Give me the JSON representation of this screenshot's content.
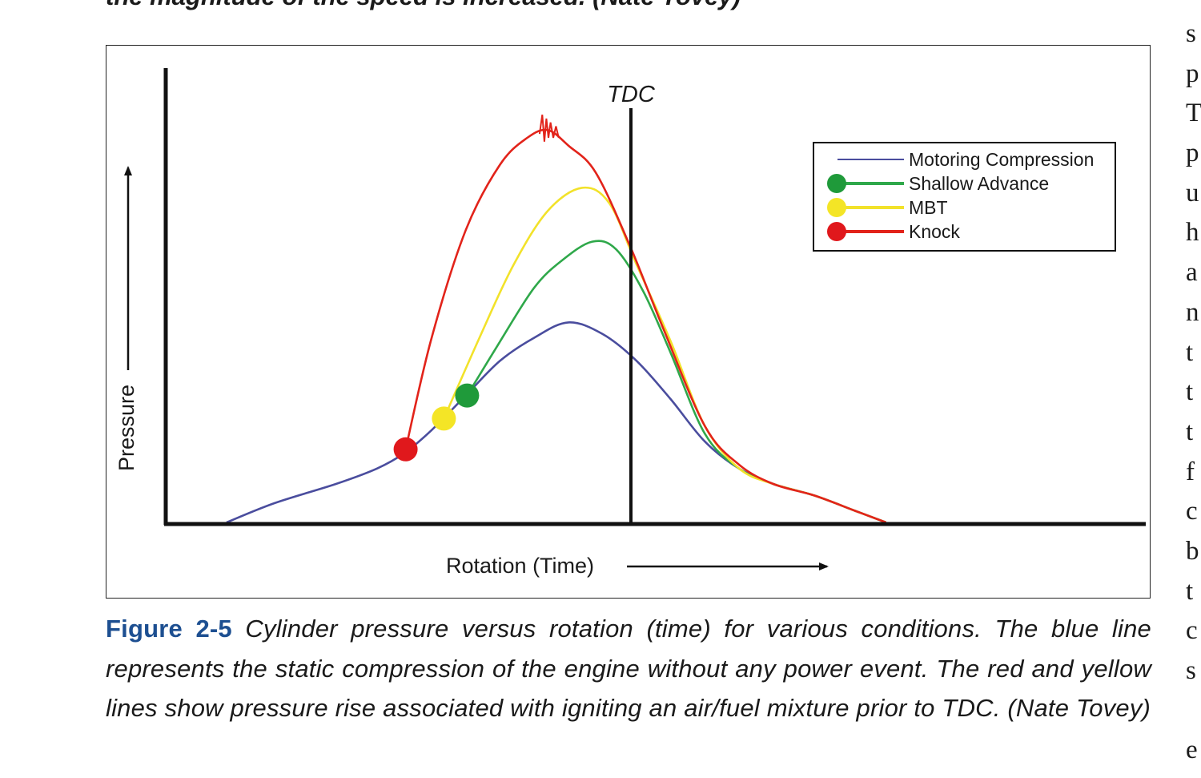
{
  "top_text_fragment": "the magnitude of the speed is increased. (Nate Tovey)",
  "side_column_fragments": [
    "s",
    "p",
    "T",
    "p",
    "u",
    "h",
    "a",
    "n",
    "t",
    "t",
    "t",
    "f",
    "c",
    "b",
    "t",
    "c",
    "s",
    "",
    "e"
  ],
  "caption": {
    "label": "Figure 2-5",
    "text": " Cylinder pressure versus rotation (time) for various conditions. The blue line represents the static compression of the engine without any power event. The red and yellow lines show pressure rise associated with igniting an air/fuel mixture prior to TDC. (Nate Tovey)"
  },
  "colors": {
    "motoring": "#4a4d9e",
    "shallow": "#2fa84a",
    "mbt": "#f2e22a",
    "knock": "#e2231a",
    "shallow_dot": "#1f9a3a",
    "mbt_dot": "#f4e526",
    "knock_dot": "#e0181c"
  },
  "chart_data": {
    "type": "line",
    "title": "",
    "xlabel": "Rotation (Time)",
    "ylabel": "Pressure",
    "tdc_label": "TDC",
    "tdc_x": 0,
    "xlim": [
      -500,
      640
    ],
    "ylim": [
      0,
      100
    ],
    "grid": false,
    "legend_placement": "top-right",
    "legend": [
      {
        "series": "motoring",
        "label": "Motoring Compression",
        "dot": false
      },
      {
        "series": "shallow",
        "label": "Shallow Advance",
        "dot": true
      },
      {
        "series": "mbt",
        "label": "MBT",
        "dot": true
      },
      {
        "series": "knock",
        "label": "Knock",
        "dot": true
      }
    ],
    "series": [
      {
        "name": "Motoring Compression",
        "key": "motoring",
        "points": [
          [
            -500,
            0
          ],
          [
            -430,
            5
          ],
          [
            -340,
            10
          ],
          [
            -280,
            14
          ],
          [
            -240,
            18
          ],
          [
            -200,
            24
          ],
          [
            -150,
            33
          ],
          [
            -100,
            42
          ],
          [
            -50,
            48
          ],
          [
            0,
            52
          ],
          [
            50,
            49
          ],
          [
            100,
            42
          ],
          [
            150,
            32
          ],
          [
            200,
            21
          ],
          [
            250,
            14
          ],
          [
            300,
            10
          ],
          [
            360,
            7
          ],
          [
            420,
            3
          ],
          [
            465,
            0
          ]
        ]
      },
      {
        "name": "Shallow Advance",
        "key": "shallow",
        "ignition": [
          -148,
          33
        ],
        "points": [
          [
            -148,
            33
          ],
          [
            -100,
            47
          ],
          [
            -50,
            61
          ],
          [
            -10,
            68
          ],
          [
            35,
            73
          ],
          [
            70,
            71
          ],
          [
            110,
            60
          ],
          [
            150,
            44
          ],
          [
            200,
            23
          ],
          [
            250,
            14
          ],
          [
            300,
            10
          ],
          [
            360,
            7
          ],
          [
            420,
            3
          ],
          [
            465,
            0
          ]
        ]
      },
      {
        "name": "MBT",
        "key": "mbt",
        "ignition": [
          -182,
          27
        ],
        "points": [
          [
            -182,
            27
          ],
          [
            -130,
            48
          ],
          [
            -80,
            67
          ],
          [
            -30,
            81
          ],
          [
            20,
            87
          ],
          [
            60,
            83
          ],
          [
            100,
            67
          ],
          [
            150,
            47
          ],
          [
            200,
            25
          ],
          [
            250,
            14
          ],
          [
            300,
            10
          ],
          [
            360,
            7
          ],
          [
            420,
            3
          ],
          [
            465,
            0
          ]
        ]
      },
      {
        "name": "Knock",
        "key": "knock",
        "ignition": [
          -238,
          19
        ],
        "points": [
          [
            -238,
            19
          ],
          [
            -200,
            48
          ],
          [
            -150,
            76
          ],
          [
            -100,
            93
          ],
          [
            -60,
            100
          ],
          [
            -30,
            102
          ],
          [
            0,
            98
          ],
          [
            40,
            91
          ],
          [
            90,
            72
          ],
          [
            140,
            50
          ],
          [
            200,
            25
          ],
          [
            250,
            15
          ],
          [
            300,
            10
          ],
          [
            360,
            7
          ],
          [
            420,
            3
          ],
          [
            465,
            0
          ]
        ]
      }
    ]
  }
}
